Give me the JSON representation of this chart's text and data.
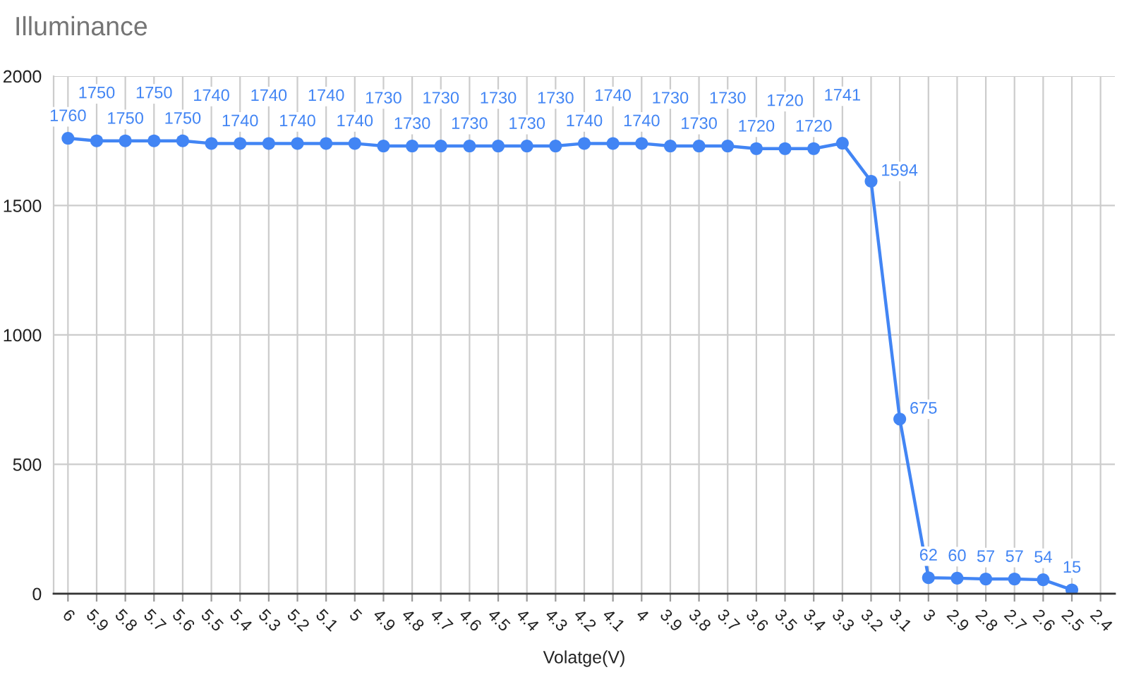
{
  "chart_data": {
    "type": "line",
    "title": "Illuminance",
    "xlabel": "Volatge(V)",
    "categories": [
      "6",
      "5.9",
      "5.8",
      "5.7",
      "5.6",
      "5.5",
      "5.4",
      "5.3",
      "5.2",
      "5.1",
      "5",
      "4.9",
      "4.8",
      "4.7",
      "4.6",
      "4.5",
      "4.4",
      "4.3",
      "4.2",
      "4.1",
      "4",
      "3.9",
      "3.8",
      "3.7",
      "3.6",
      "3.5",
      "3.4",
      "3.3",
      "3.2",
      "3.1",
      "3",
      "2.9",
      "2.8",
      "2.7",
      "2.6",
      "2.5",
      "2.4"
    ],
    "series": [
      {
        "color": "#4285f4",
        "values": [
          1760,
          1750,
          1750,
          1750,
          1750,
          1740,
          1740,
          1740,
          1740,
          1740,
          1740,
          1730,
          1730,
          1730,
          1730,
          1730,
          1730,
          1730,
          1740,
          1740,
          1740,
          1730,
          1730,
          1730,
          1720,
          1720,
          1720,
          1741,
          1594,
          675,
          62,
          60,
          57,
          57,
          54,
          15,
          null
        ]
      }
    ],
    "data_labels": true,
    "ylim": [
      0,
      2000
    ],
    "yticks": [
      0,
      500,
      1000,
      1500,
      2000
    ],
    "grid": true,
    "marker": "circle",
    "line_style": "solid"
  }
}
